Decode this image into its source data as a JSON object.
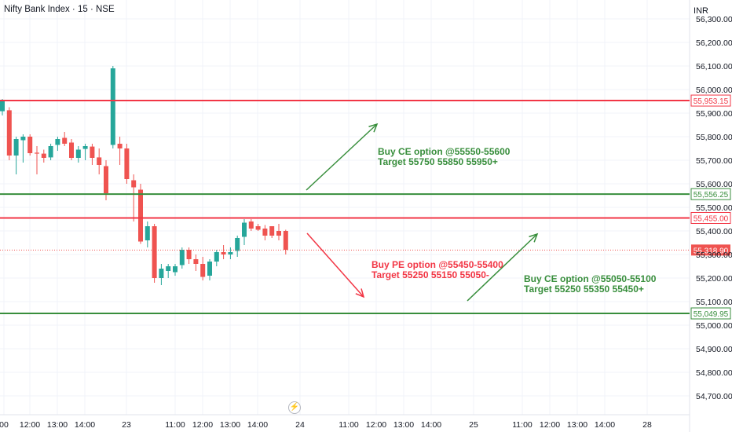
{
  "header": {
    "title": "Nifty Bank Index · 15 · NSE",
    "currency": "INR"
  },
  "colors": {
    "up": "#26a69a",
    "down": "#ef5350",
    "resistance": "#f23645",
    "support": "#388e3c",
    "grid": "#f0f3fa",
    "text": "#131722",
    "last_price": "#ef5350"
  },
  "chart_data": {
    "type": "candlestick",
    "y_axis": {
      "min": 54620,
      "max": 56380,
      "ticks": [
        54700,
        54800,
        54900,
        55000,
        55100,
        55200,
        55300,
        55400,
        55500,
        55600,
        55700,
        55800,
        55900,
        56000,
        56100,
        56200,
        56300
      ],
      "tick_labels": [
        "54,700.00",
        "54,800.00",
        "54,900.00",
        "55,000.00",
        "55,100.00",
        "55,200.00",
        "55,300.00",
        "55,400.00",
        "55,500.00",
        "55,600.00",
        "55,700.00",
        "55,800.00",
        "55,900.00",
        "56,000.00",
        "56,100.00",
        "56,200.00",
        "56,300.00"
      ]
    },
    "x_axis": {
      "labels": [
        "00",
        "12:00",
        "13:00",
        "14:00",
        "23",
        "11:00",
        "12:00",
        "13:00",
        "14:00",
        "24",
        "11:00",
        "12:00",
        "13:00",
        "14:00",
        "25",
        "11:00",
        "12:00",
        "13:00",
        "14:00",
        "28"
      ]
    },
    "candles": [
      {
        "o": 55908,
        "h": 55960,
        "l": 55890,
        "c": 55950
      },
      {
        "o": 55912,
        "h": 55925,
        "l": 55700,
        "c": 55720
      },
      {
        "o": 55720,
        "h": 55800,
        "l": 55640,
        "c": 55790
      },
      {
        "o": 55785,
        "h": 55810,
        "l": 55690,
        "c": 55800
      },
      {
        "o": 55800,
        "h": 55810,
        "l": 55720,
        "c": 55730
      },
      {
        "o": 55732,
        "h": 55760,
        "l": 55640,
        "c": 55728
      },
      {
        "o": 55728,
        "h": 55745,
        "l": 55690,
        "c": 55710
      },
      {
        "o": 55712,
        "h": 55770,
        "l": 55700,
        "c": 55760
      },
      {
        "o": 55765,
        "h": 55800,
        "l": 55740,
        "c": 55790
      },
      {
        "o": 55795,
        "h": 55820,
        "l": 55760,
        "c": 55770
      },
      {
        "o": 55775,
        "h": 55790,
        "l": 55700,
        "c": 55710
      },
      {
        "o": 55710,
        "h": 55760,
        "l": 55690,
        "c": 55745
      },
      {
        "o": 55748,
        "h": 55770,
        "l": 55700,
        "c": 55760
      },
      {
        "o": 55758,
        "h": 55770,
        "l": 55680,
        "c": 55710
      },
      {
        "o": 55712,
        "h": 55750,
        "l": 55640,
        "c": 55680
      },
      {
        "o": 55675,
        "h": 55700,
        "l": 55530,
        "c": 55560
      },
      {
        "o": 55765,
        "h": 56100,
        "l": 55750,
        "c": 56090
      },
      {
        "o": 55770,
        "h": 55800,
        "l": 55680,
        "c": 55750
      },
      {
        "o": 55750,
        "h": 55770,
        "l": 55600,
        "c": 55620
      },
      {
        "o": 55615,
        "h": 55640,
        "l": 55440,
        "c": 55585
      },
      {
        "o": 55575,
        "h": 55600,
        "l": 55345,
        "c": 55355
      },
      {
        "o": 55360,
        "h": 55440,
        "l": 55330,
        "c": 55420
      },
      {
        "o": 55420,
        "h": 55430,
        "l": 55180,
        "c": 55200
      },
      {
        "o": 55200,
        "h": 55260,
        "l": 55170,
        "c": 55240
      },
      {
        "o": 55230,
        "h": 55260,
        "l": 55200,
        "c": 55250
      },
      {
        "o": 55225,
        "h": 55260,
        "l": 55210,
        "c": 55250
      },
      {
        "o": 55255,
        "h": 55330,
        "l": 55240,
        "c": 55320
      },
      {
        "o": 55320,
        "h": 55330,
        "l": 55260,
        "c": 55280
      },
      {
        "o": 55280,
        "h": 55300,
        "l": 55230,
        "c": 55260
      },
      {
        "o": 55260,
        "h": 55290,
        "l": 55190,
        "c": 55205
      },
      {
        "o": 55210,
        "h": 55280,
        "l": 55190,
        "c": 55270
      },
      {
        "o": 55270,
        "h": 55320,
        "l": 55250,
        "c": 55310
      },
      {
        "o": 55310,
        "h": 55340,
        "l": 55280,
        "c": 55300
      },
      {
        "o": 55300,
        "h": 55330,
        "l": 55280,
        "c": 55310
      },
      {
        "o": 55315,
        "h": 55380,
        "l": 55290,
        "c": 55370
      },
      {
        "o": 55375,
        "h": 55450,
        "l": 55340,
        "c": 55435
      },
      {
        "o": 55440,
        "h": 55450,
        "l": 55400,
        "c": 55410
      },
      {
        "o": 55420,
        "h": 55430,
        "l": 55400,
        "c": 55405
      },
      {
        "o": 55410,
        "h": 55425,
        "l": 55360,
        "c": 55380
      },
      {
        "o": 55420,
        "h": 55420,
        "l": 55370,
        "c": 55380
      },
      {
        "o": 55400,
        "h": 55430,
        "l": 55360,
        "c": 55380
      },
      {
        "o": 55400,
        "h": 55405,
        "l": 55300,
        "c": 55320
      }
    ],
    "levels": [
      {
        "value": 55953.15,
        "label": "55,953.15",
        "kind": "resistance"
      },
      {
        "value": 55556.25,
        "label": "55,556.25",
        "kind": "support"
      },
      {
        "value": 55455.0,
        "label": "55,455.00",
        "kind": "resistance"
      },
      {
        "value": 55049.95,
        "label": "55,049.95",
        "kind": "support"
      }
    ],
    "last_price": {
      "value": 55318.9,
      "label": "55,318.90"
    },
    "annotations": [
      {
        "line1": "Buy CE option @55550-55600",
        "line2": "Target 55750 55850 55950+",
        "kind": "support"
      },
      {
        "line1": "Buy PE option @55450-55400",
        "line2": "Target 55250 55150 55050-",
        "kind": "resistance"
      },
      {
        "line1": "Buy CE option @55050-55100",
        "line2": "Target 55250 55350 55450+",
        "kind": "support"
      }
    ]
  }
}
